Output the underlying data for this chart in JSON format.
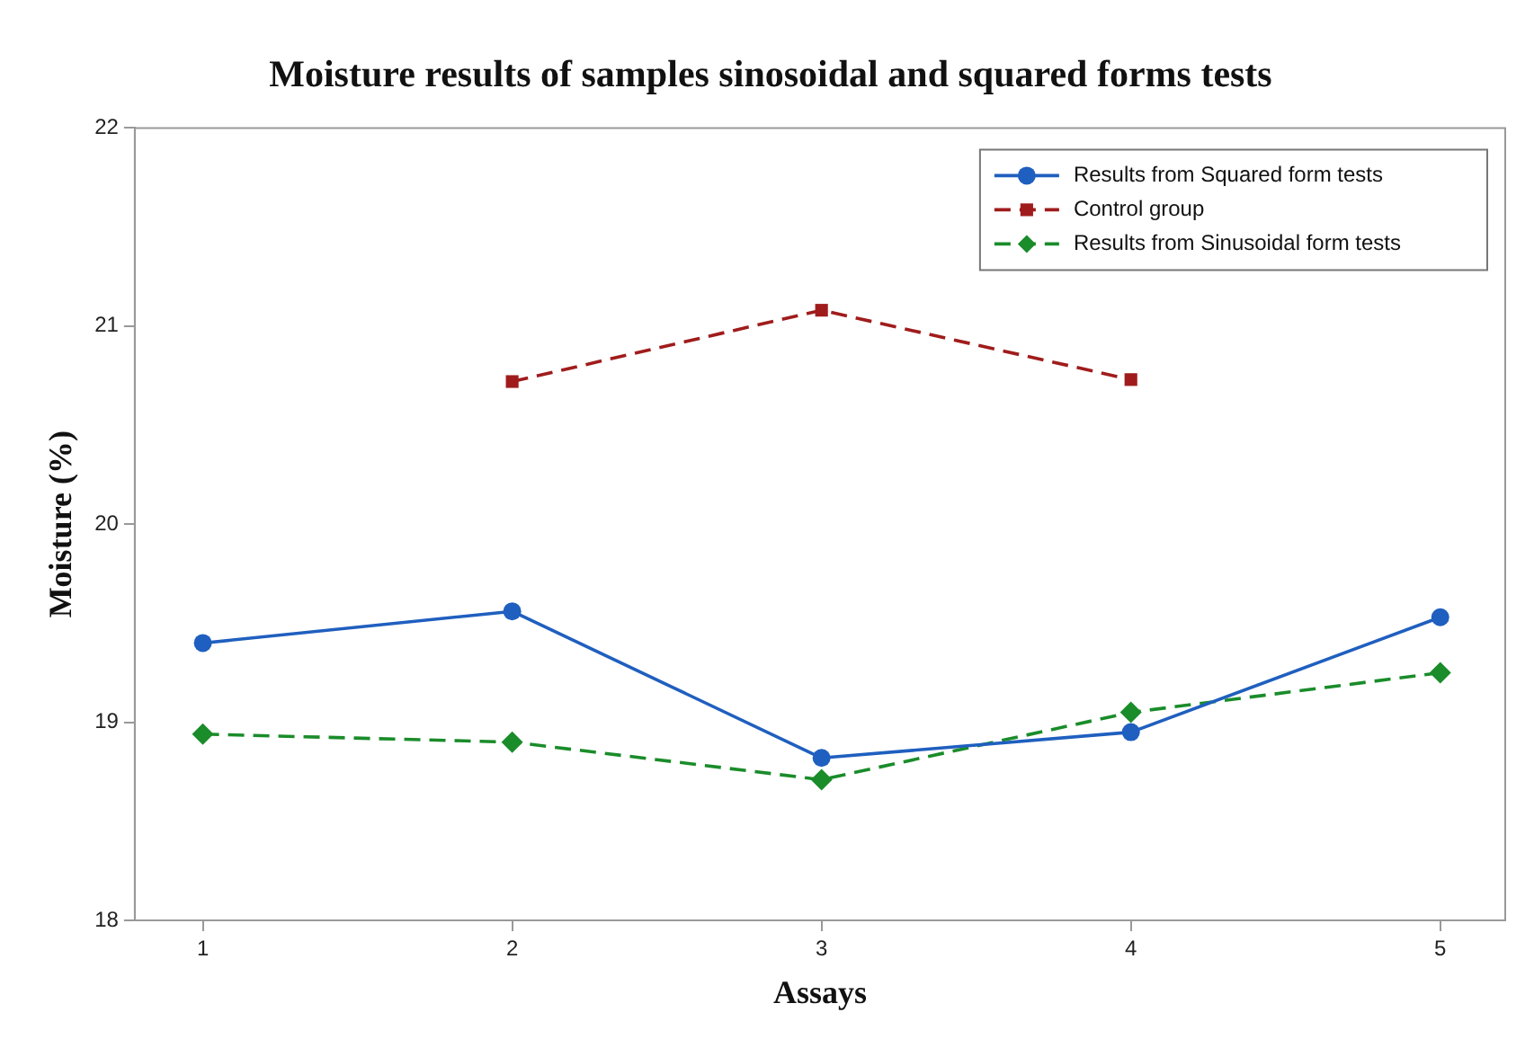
{
  "chart_data": {
    "type": "line",
    "title": "Moisture results of samples sinosoidal and squared forms tests",
    "xlabel": "Assays",
    "ylabel": "Moisture (%)",
    "x": [
      1,
      2,
      3,
      4,
      5
    ],
    "xlim": [
      0.78,
      5.21
    ],
    "xticks": [
      1,
      2,
      3,
      4,
      5
    ],
    "ylim": [
      18,
      22
    ],
    "yticks": [
      18,
      19,
      20,
      21,
      22
    ],
    "grid": false,
    "legend": "top right",
    "series": [
      {
        "name": "Results from Squared form tests",
        "color": "#1f5fbf",
        "marker": "circle",
        "line_style": "solid",
        "values": [
          19.4,
          19.56,
          18.82,
          18.95,
          19.53
        ]
      },
      {
        "name": "Control group",
        "color": "#a01c1c",
        "marker": "square",
        "line_style": "dashed",
        "values": [
          null,
          20.72,
          21.08,
          20.73,
          null
        ]
      },
      {
        "name": "Results from Sinusoidal form tests",
        "color": "#1a8c2a",
        "marker": "diamond",
        "line_style": "dashed",
        "values": [
          18.94,
          18.9,
          18.71,
          19.05,
          19.25
        ]
      }
    ]
  }
}
